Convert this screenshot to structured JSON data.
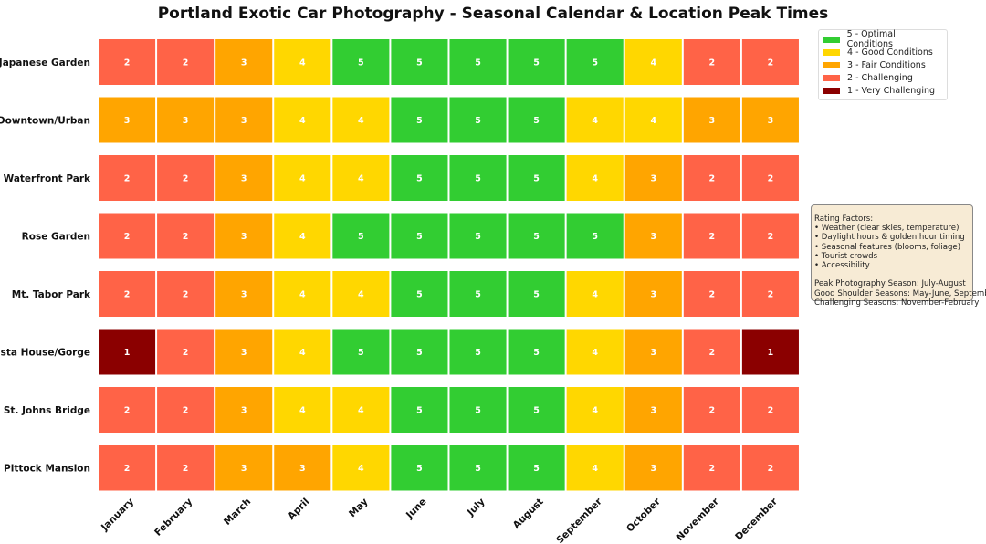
{
  "chart_data": {
    "type": "heatmap",
    "title": "Portland Exotic Car Photography - Seasonal Calendar & Location Peak Times",
    "columns": [
      "January",
      "February",
      "March",
      "April",
      "May",
      "June",
      "July",
      "August",
      "September",
      "October",
      "November",
      "December"
    ],
    "rows": [
      "Japanese Garden",
      "Downtown/Urban",
      "Waterfront Park",
      "Rose Garden",
      "Mt. Tabor Park",
      "Vista House/Gorge",
      "St. Johns Bridge",
      "Pittock Mansion"
    ],
    "values": [
      [
        2,
        2,
        3,
        4,
        5,
        5,
        5,
        5,
        5,
        4,
        2,
        2
      ],
      [
        3,
        3,
        3,
        4,
        4,
        5,
        5,
        5,
        4,
        4,
        3,
        3
      ],
      [
        2,
        2,
        3,
        4,
        4,
        5,
        5,
        5,
        4,
        3,
        2,
        2
      ],
      [
        2,
        2,
        3,
        4,
        5,
        5,
        5,
        5,
        5,
        3,
        2,
        2
      ],
      [
        2,
        2,
        3,
        4,
        4,
        5,
        5,
        5,
        4,
        3,
        2,
        2
      ],
      [
        1,
        2,
        3,
        4,
        5,
        5,
        5,
        5,
        4,
        3,
        2,
        1
      ],
      [
        2,
        2,
        3,
        4,
        4,
        5,
        5,
        5,
        4,
        3,
        2,
        2
      ],
      [
        2,
        2,
        3,
        3,
        4,
        5,
        5,
        5,
        4,
        3,
        2,
        2
      ]
    ],
    "colors": {
      "5": "#32cd32",
      "4": "#ffd700",
      "3": "#ffa500",
      "2": "#ff6347",
      "1": "#8b0000"
    },
    "legend": {
      "placement": "top-right",
      "entries": [
        {
          "label": "5 - Optimal Conditions",
          "color": "#32cd32"
        },
        {
          "label": "4 - Good Conditions",
          "color": "#ffd700"
        },
        {
          "label": "3 - Fair Conditions",
          "color": "#ffa500"
        },
        {
          "label": "2 - Challenging",
          "color": "#ff6347"
        },
        {
          "label": "1 - Very Challenging",
          "color": "#8b0000"
        }
      ]
    },
    "annotation": "Rating Factors:\n• Weather (clear skies, temperature)\n• Daylight hours & golden hour timing\n• Seasonal features (blooms, foliage)\n• Tourist crowds\n• Accessibility\n\nPeak Photography Season: July-August\nGood Shoulder Seasons: May-June, September\nChallenging Seasons: November-February"
  }
}
